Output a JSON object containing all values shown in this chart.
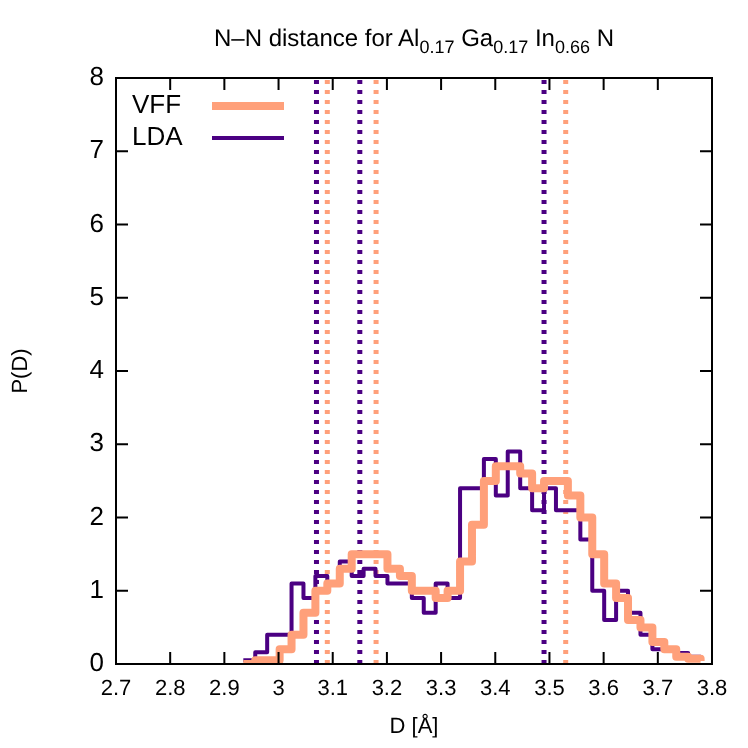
{
  "chart_data": {
    "type": "step",
    "title": "N–N distance for Al$_{0.17}$ Ga$_{0.17}$ In$_{0.66}$ N",
    "xlabel": "D [Å]",
    "ylabel": "P(D)",
    "x": [
      2.935,
      2.957,
      2.979,
      3.002,
      3.024,
      3.046,
      3.068,
      3.09,
      3.113,
      3.135,
      3.157,
      3.179,
      3.201,
      3.224,
      3.246,
      3.268,
      3.29,
      3.312,
      3.335,
      3.357,
      3.379,
      3.401,
      3.423,
      3.446,
      3.468,
      3.49,
      3.512,
      3.534,
      3.557,
      3.579,
      3.601,
      3.623,
      3.645,
      3.668,
      3.69,
      3.712,
      3.734,
      3.756,
      3.779
    ],
    "series": [
      {
        "name": "VFF",
        "color": "#ffa07a",
        "values": [
          0,
          0.05,
          0.05,
          0.2,
          0.4,
          0.7,
          1.0,
          1.1,
          1.3,
          1.5,
          1.5,
          1.5,
          1.3,
          1.2,
          1.0,
          1.0,
          0.9,
          1.0,
          1.4,
          1.9,
          2.5,
          2.7,
          2.7,
          2.6,
          2.4,
          2.5,
          2.5,
          2.3,
          2.0,
          1.5,
          1.1,
          0.9,
          0.6,
          0.5,
          0.3,
          0.2,
          0.1,
          0.07,
          0.04
        ]
      },
      {
        "name": "LDA",
        "color": "#4b0082",
        "values": [
          0.05,
          0.16,
          0.4,
          0.4,
          1.1,
          0.9,
          1.2,
          1.1,
          1.4,
          1.2,
          1.3,
          1.2,
          1.1,
          1.1,
          0.9,
          0.7,
          1.1,
          0.9,
          2.4,
          2.4,
          2.8,
          2.3,
          2.9,
          2.4,
          2.1,
          2.4,
          2.1,
          2.1,
          1.7,
          1.0,
          0.6,
          1.0,
          0.7,
          0.4,
          0.2,
          0.2,
          0.15,
          0.1,
          0.05
        ]
      }
    ],
    "xlim": [
      2.7,
      3.8
    ],
    "xticks": [
      2.7,
      2.8,
      2.9,
      3,
      3.1,
      3.2,
      3.3,
      3.4,
      3.5,
      3.6,
      3.7,
      3.8
    ],
    "ylim": [
      0,
      8
    ],
    "yticks": [
      0,
      1,
      2,
      3,
      4,
      5,
      6,
      7,
      8
    ],
    "ref_lines": [
      {
        "axis": "x",
        "value": 3.07,
        "color": "#4b0082",
        "line_style": "dotted"
      },
      {
        "axis": "x",
        "value": 3.15,
        "color": "#4b0082",
        "line_style": "dotted"
      },
      {
        "axis": "x",
        "value": 3.49,
        "color": "#4b0082",
        "line_style": "dotted"
      },
      {
        "axis": "x",
        "value": 3.09,
        "color": "#ffa07a",
        "line_style": "dotted"
      },
      {
        "axis": "x",
        "value": 3.18,
        "color": "#ffa07a",
        "line_style": "dotted"
      },
      {
        "axis": "x",
        "value": 3.53,
        "color": "#ffa07a",
        "line_style": "dotted"
      }
    ],
    "grid": false,
    "legend": "top left",
    "line_style": "solid",
    "marker": "none"
  }
}
